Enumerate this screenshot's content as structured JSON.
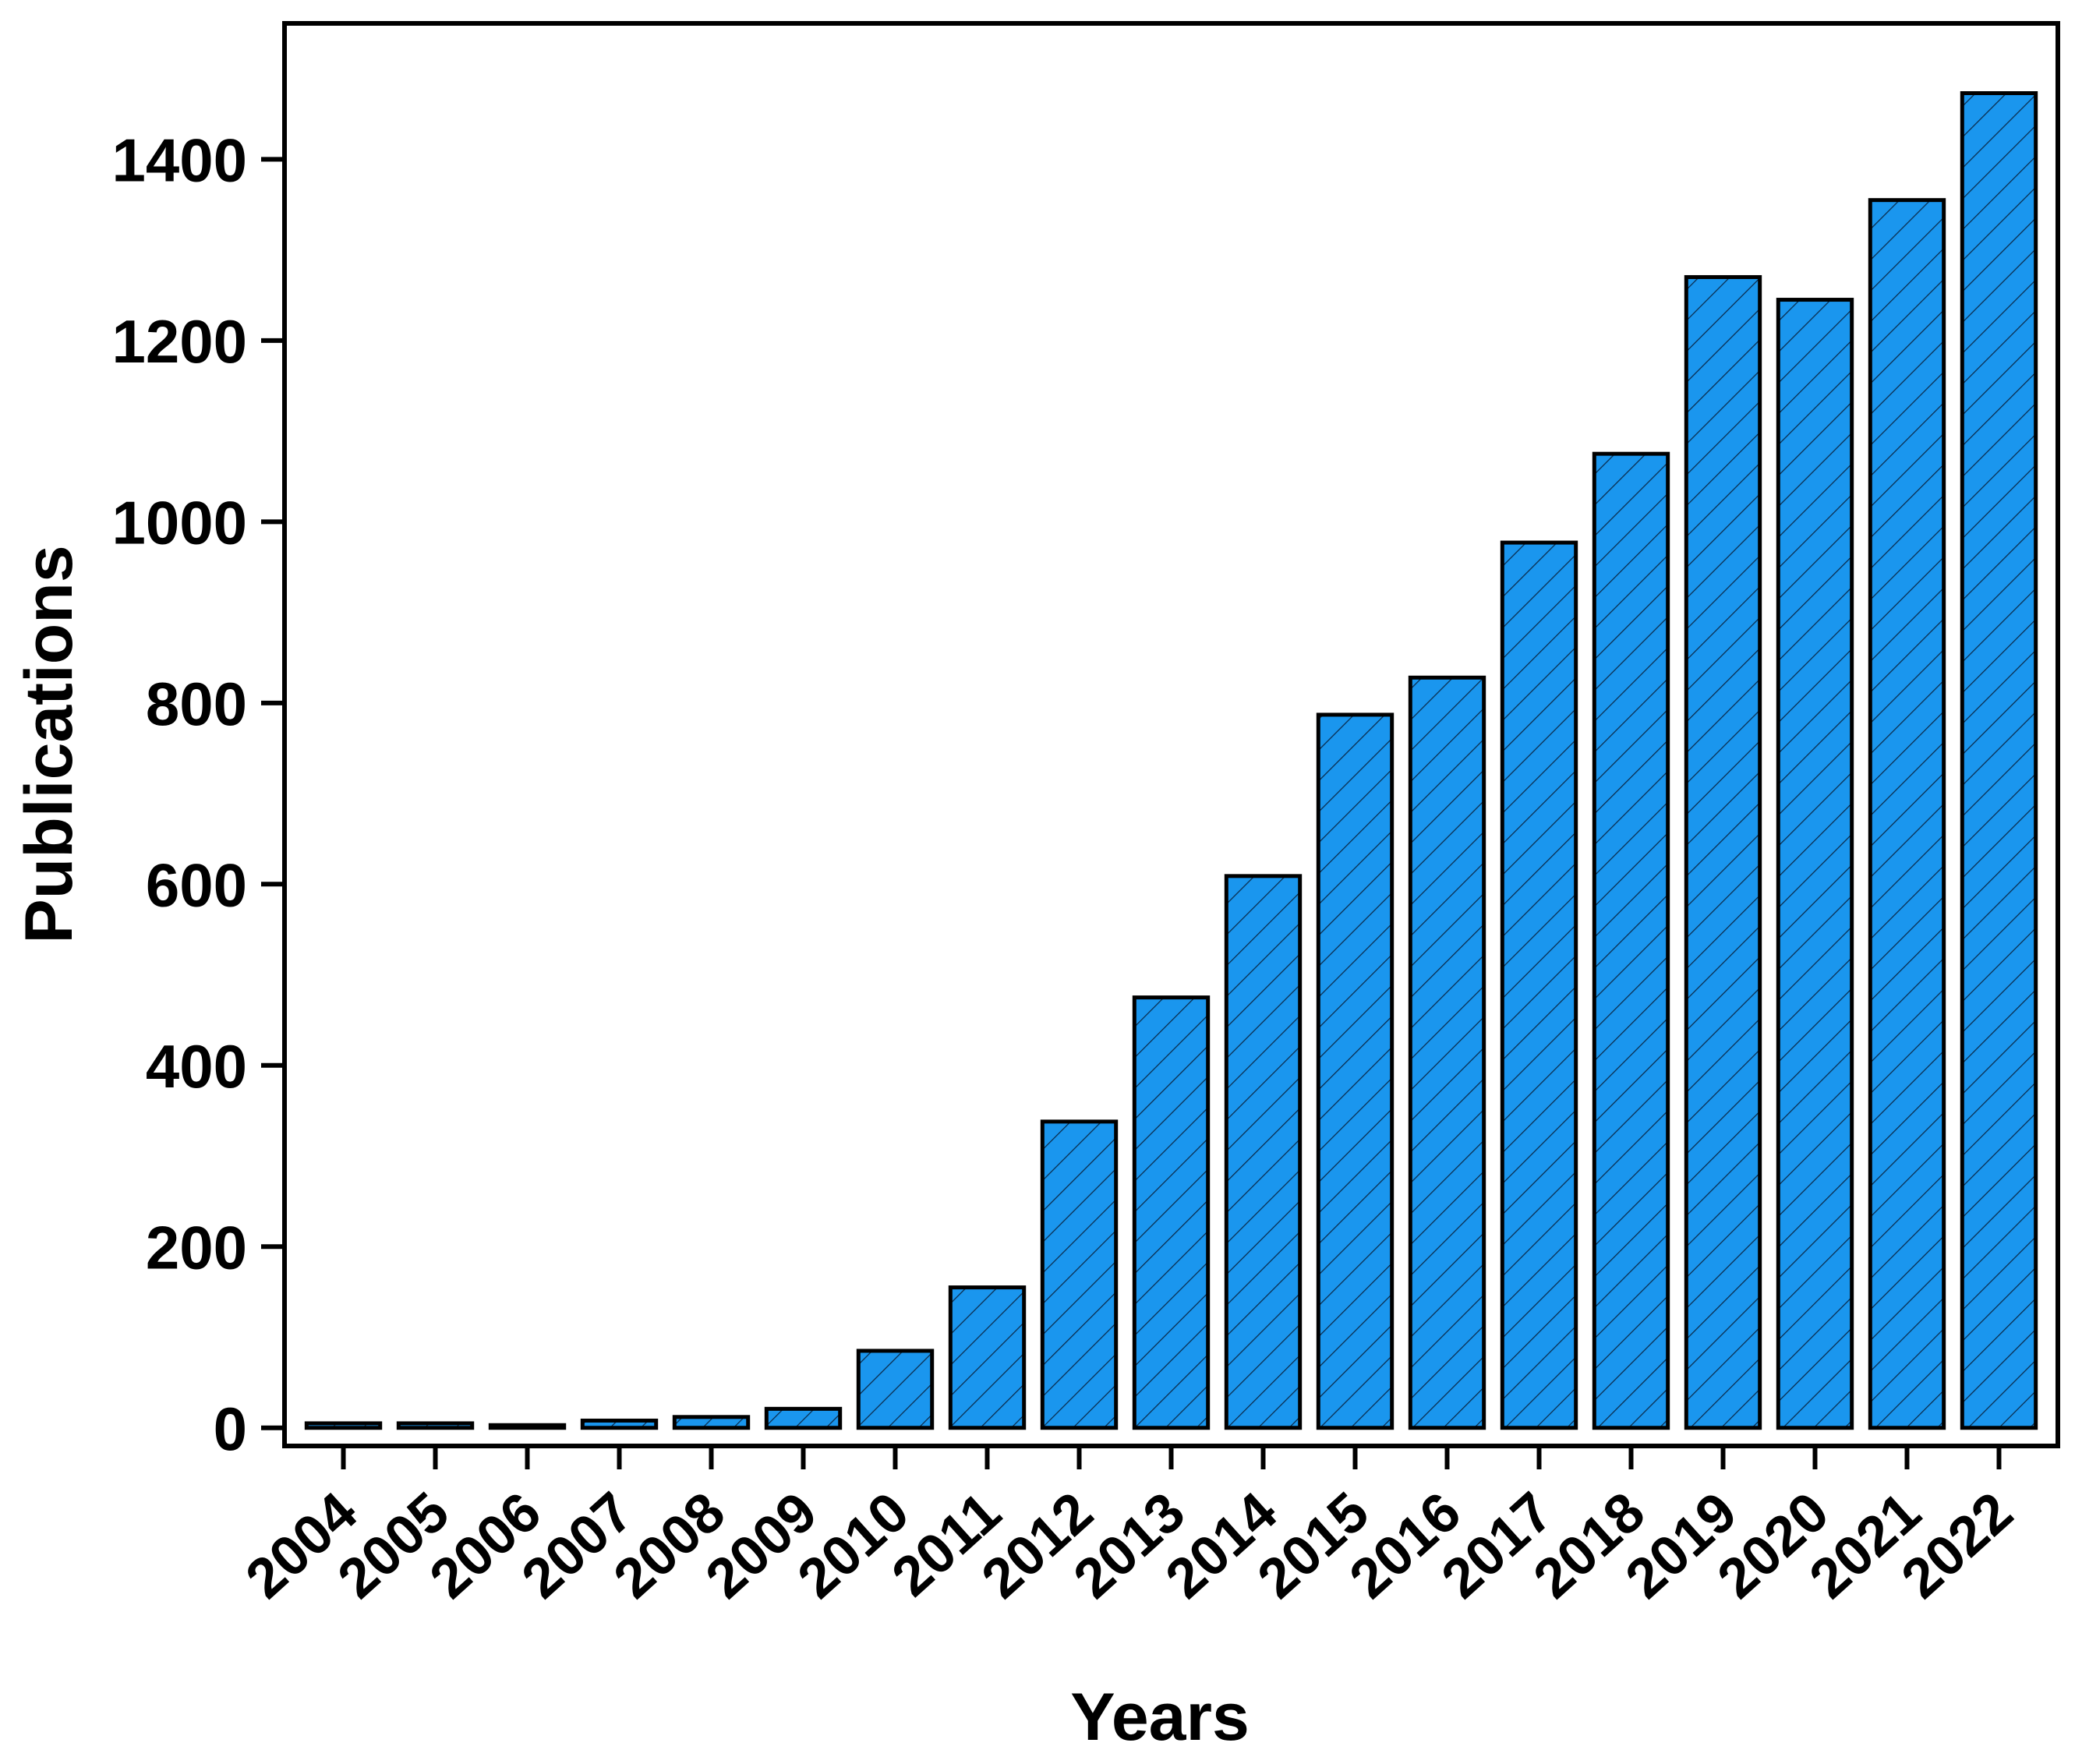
{
  "chart_data": {
    "type": "bar",
    "title": "",
    "xlabel": "Years",
    "ylabel": "Publications",
    "categories": [
      "2004",
      "2005",
      "2006",
      "2007",
      "2008",
      "2009",
      "2010",
      "2011",
      "2012",
      "2013",
      "2014",
      "2015",
      "2016",
      "2017",
      "2018",
      "2019",
      "2020",
      "2021",
      "2022"
    ],
    "values": [
      5,
      5,
      3,
      8,
      12,
      21,
      85,
      155,
      338,
      475,
      609,
      787,
      828,
      977,
      1075,
      1270,
      1245,
      1355,
      1473
    ],
    "ylim": [
      -20,
      1550
    ],
    "yticks": [
      0,
      200,
      400,
      600,
      800,
      1000,
      1200,
      1400
    ],
    "ytick_labels": [
      "0",
      "200",
      "400",
      "600",
      "800",
      "1000",
      "1200",
      "1400"
    ],
    "grid": false,
    "legend": "none",
    "bar_color": "#1a96ee",
    "hatch": "diagonal"
  }
}
